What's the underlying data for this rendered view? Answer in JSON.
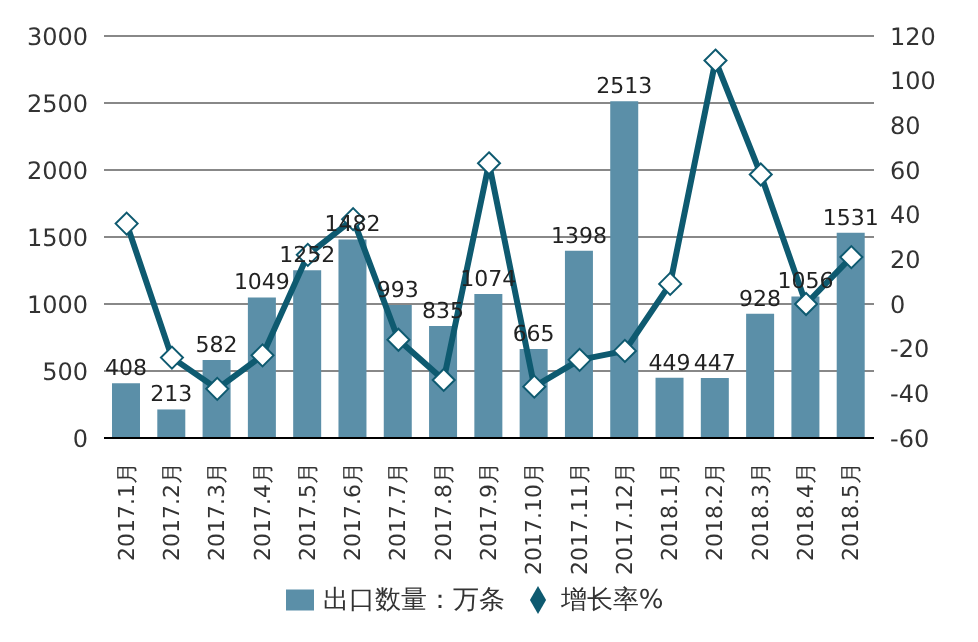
{
  "chart_data": {
    "type": "bar",
    "categories": [
      "2017.1月",
      "2017.2月",
      "2017.3月",
      "2017.4月",
      "2017.5月",
      "2017.6月",
      "2017.7月",
      "2017.8月",
      "2017.9月",
      "2017.10月",
      "2017.11月",
      "2017.12月",
      "2018.1月",
      "2018.2月",
      "2018.3月",
      "2018.4月",
      "2018.5月"
    ],
    "series": [
      {
        "name": "出口数量：万条",
        "color": "#5b8fa8",
        "values": [
          408,
          213,
          582,
          1049,
          1252,
          1482,
          993,
          835,
          1074,
          665,
          1398,
          2513,
          449,
          447,
          928,
          1056,
          1531
        ],
        "value_labels": [
          "408",
          "213",
          "582",
          "1049",
          "1252",
          "1482",
          "993",
          "835",
          "1074",
          "665",
          "1398",
          "2513",
          "449",
          "447",
          "928",
          "1056",
          "1531"
        ]
      },
      {
        "name": "增长率%",
        "type": "line",
        "axis": "y2",
        "color": "#0e5a70",
        "marker": "diamond",
        "values": [
          36,
          -24,
          -38,
          -23,
          22,
          38,
          -16,
          -34,
          63,
          -37,
          -25,
          -21,
          9,
          109,
          58,
          0,
          21
        ]
      }
    ],
    "ylim": [
      0,
      3000
    ],
    "yticks": [
      0,
      500,
      1000,
      1500,
      2000,
      2500,
      3000
    ],
    "y2lim": [
      -60,
      120
    ],
    "y2ticks": [
      -60,
      -40,
      -20,
      0,
      20,
      40,
      60,
      80,
      100,
      120
    ],
    "grid": "y",
    "legend": "bottom"
  }
}
